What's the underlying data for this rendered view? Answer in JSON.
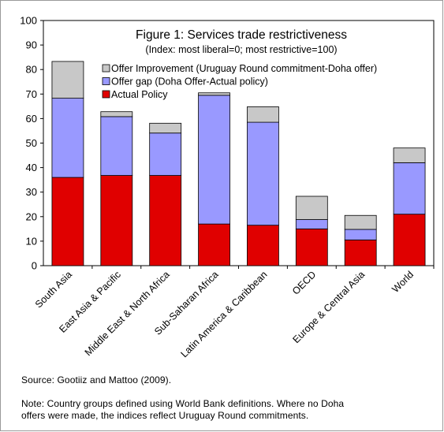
{
  "chart_data": {
    "type": "bar",
    "stacked": true,
    "title": "Figure 1: Services trade restrictiveness",
    "subtitle": "(Index: most liberal=0; most restrictive=100)",
    "categories": [
      "South Asia",
      "East Asia & Pacific",
      "Middle East & North Africa",
      "Sub-Saharan Africa",
      "Latin America & Caribbean",
      "OECD",
      "Europe & Central Asia",
      "World"
    ],
    "series": [
      {
        "name": "Actual Policy",
        "color": "#e00000",
        "values": [
          36,
          36.8,
          36.8,
          17,
          16.5,
          15,
          10.5,
          21
        ]
      },
      {
        "name": "Offer gap (Doha Offer-Actual policy)",
        "color": "#9999ff",
        "values": [
          32.3,
          24,
          17.3,
          52.5,
          42,
          3.8,
          4.3,
          21
        ]
      },
      {
        "name": "Offer Improvement (Uruguay Round commitment-Doha offer)",
        "color": "#c8c8c8",
        "values": [
          15,
          2,
          4,
          1,
          6.3,
          9.5,
          5.7,
          6
        ]
      }
    ],
    "legend_order": [
      "Offer Improvement (Uruguay Round commitment-Doha offer)",
      "Offer gap (Doha Offer-Actual policy)",
      "Actual Policy"
    ],
    "legend_position": "top-right",
    "ylim": [
      0,
      100
    ],
    "yticks": [
      "0",
      "10",
      "20",
      "30",
      "40",
      "50",
      "60",
      "70",
      "80",
      "90",
      "100"
    ],
    "xlabel": "",
    "ylabel": "",
    "grid": false
  },
  "notes": {
    "source": "Source:  Gootiiz and Mattoo (2009).",
    "note_line1": "Note: Country groups defined using World Bank definitions. Where no Doha",
    "note_line2": "offers were made, the indices reflect Uruguay Round commitments."
  }
}
